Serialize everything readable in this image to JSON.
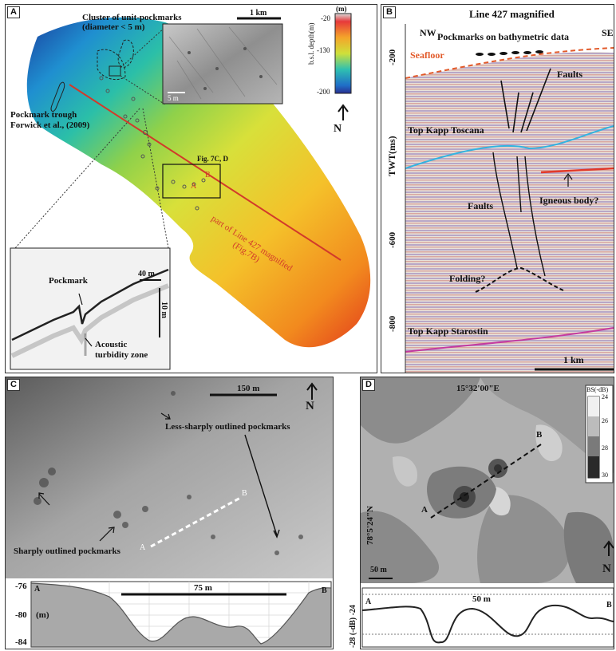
{
  "panel_a": {
    "label": "A",
    "cluster_text_1": "Cluster of unit-pockmarks",
    "cluster_text_2": "(diameter < 5 m)",
    "scale_1km": "1 km",
    "inset_scale": "5 m",
    "trough_1": "Pockmark trough",
    "trough_2": "Forwick et al., (2009)",
    "fig_ref": "Fig. 7C, D",
    "point_a": "A",
    "point_b": "B",
    "line_label_1": "part of Line 427 magnified",
    "line_label_2": "(Fig.7B)",
    "colorbar_unit": "(m)",
    "colorbar_title": "b.s.l. depth(m)",
    "colorbar_ticks": [
      "-20",
      "-130",
      "-200"
    ],
    "north": "N",
    "profile_pockmark": "Pockmark",
    "profile_40m": "40 m",
    "profile_10m": "10 m",
    "profile_acoustic_1": "Acoustic",
    "profile_acoustic_2": "turbidity zone"
  },
  "panel_b": {
    "label": "B",
    "title": "Line 427 magnified",
    "nw": "NW",
    "se": "SE",
    "pockmarks_bathy": "Pockmarks on bathymetric data",
    "seafloor": "Seafloor",
    "faults_upper": "Faults",
    "top_kapp_toscana": "Top Kapp Toscana",
    "faults_lower": "Faults",
    "igneous": "Igneous body?",
    "folding": "Folding?",
    "top_kapp_starostin": "Top Kapp Starostin",
    "scale": "1 km",
    "y_axis_label": "TWT(ms)",
    "y_ticks": [
      "-200",
      "-400",
      "-600",
      "-800"
    ]
  },
  "panel_c": {
    "label": "C",
    "scale": "150 m",
    "north": "N",
    "less_sharp": "Less-sharply outlined pockmarks",
    "sharp": "Sharply outlined pockmarks",
    "point_a": "A",
    "point_b": "B",
    "profile_scale": "75 m",
    "profile_a": "A",
    "profile_b": "B",
    "y_ticks": [
      "-76",
      "-80",
      "-84"
    ],
    "y_unit": "(m)"
  },
  "panel_d": {
    "label": "D",
    "lon": "15°32'00\"E",
    "lat": "78°5'24\"N",
    "point_a": "A",
    "point_b": "B",
    "scale": "50 m",
    "north": "N",
    "bs_title": "BS(-dB)",
    "bs_ticks": [
      "24",
      "26",
      "28",
      "30"
    ],
    "profile_scale": "50 m",
    "profile_a": "A",
    "profile_b": "B",
    "profile_ylabel": "(-dB)",
    "profile_ticks": [
      "-28",
      "-24"
    ]
  }
}
